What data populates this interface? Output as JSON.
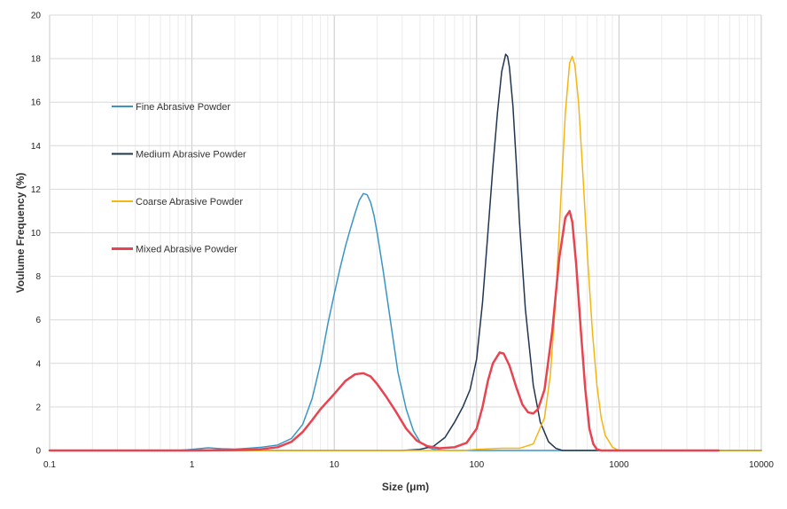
{
  "chart_data": {
    "type": "line",
    "title": "",
    "xlabel": "Size (μm)",
    "ylabel": "Voulume Frequency (%)",
    "xscale": "log",
    "xlim": [
      0.1,
      10000
    ],
    "ylim": [
      0,
      20
    ],
    "x_ticks": [
      0.1,
      1,
      10,
      100,
      1000,
      10000
    ],
    "x_tick_labels": [
      "0.1",
      "1",
      "10",
      "100",
      "1000",
      "10000"
    ],
    "y_ticks": [
      0,
      2,
      4,
      6,
      8,
      10,
      12,
      14,
      16,
      18,
      20
    ],
    "y_tick_labels": [
      "0",
      "2",
      "4",
      "6",
      "8",
      "10",
      "12",
      "14",
      "16",
      "18",
      "20"
    ],
    "grid": true,
    "legend_position": "upper-left",
    "series": [
      {
        "name": "Fine Abrasive Powder",
        "color": "#3a95c4",
        "line_width": 1.5,
        "points": [
          [
            0.1,
            0
          ],
          [
            0.8,
            0
          ],
          [
            1.0,
            0.05
          ],
          [
            1.3,
            0.12
          ],
          [
            1.6,
            0.08
          ],
          [
            2,
            0.06
          ],
          [
            2.5,
            0.1
          ],
          [
            3,
            0.14
          ],
          [
            4,
            0.25
          ],
          [
            5,
            0.55
          ],
          [
            6,
            1.2
          ],
          [
            7,
            2.4
          ],
          [
            8,
            4.0
          ],
          [
            9,
            5.8
          ],
          [
            10,
            7.2
          ],
          [
            11,
            8.4
          ],
          [
            12,
            9.4
          ],
          [
            13,
            10.2
          ],
          [
            14,
            10.9
          ],
          [
            15,
            11.5
          ],
          [
            16,
            11.8
          ],
          [
            17,
            11.75
          ],
          [
            18,
            11.4
          ],
          [
            19,
            10.8
          ],
          [
            20,
            10.0
          ],
          [
            22,
            8.3
          ],
          [
            25,
            5.8
          ],
          [
            28,
            3.6
          ],
          [
            32,
            1.9
          ],
          [
            36,
            0.9
          ],
          [
            40,
            0.4
          ],
          [
            45,
            0.15
          ],
          [
            50,
            0.05
          ],
          [
            60,
            0
          ],
          [
            10000,
            0
          ]
        ]
      },
      {
        "name": "Medium Abrasive Powder",
        "color": "#1f3550",
        "line_width": 1.5,
        "points": [
          [
            0.1,
            0
          ],
          [
            30,
            0
          ],
          [
            40,
            0.05
          ],
          [
            50,
            0.2
          ],
          [
            60,
            0.6
          ],
          [
            70,
            1.3
          ],
          [
            80,
            2.0
          ],
          [
            90,
            2.8
          ],
          [
            100,
            4.2
          ],
          [
            110,
            6.8
          ],
          [
            120,
            10.0
          ],
          [
            130,
            13.0
          ],
          [
            140,
            15.5
          ],
          [
            150,
            17.4
          ],
          [
            160,
            18.2
          ],
          [
            165,
            18.1
          ],
          [
            170,
            17.6
          ],
          [
            180,
            15.8
          ],
          [
            190,
            13.2
          ],
          [
            200,
            10.5
          ],
          [
            220,
            6.5
          ],
          [
            250,
            3.0
          ],
          [
            280,
            1.3
          ],
          [
            320,
            0.4
          ],
          [
            360,
            0.1
          ],
          [
            400,
            0
          ],
          [
            10000,
            0
          ]
        ]
      },
      {
        "name": "Coarse Abrasive Powder",
        "color": "#f3b612",
        "line_width": 1.5,
        "points": [
          [
            0.1,
            0
          ],
          [
            80,
            0
          ],
          [
            100,
            0.05
          ],
          [
            150,
            0.1
          ],
          [
            200,
            0.1
          ],
          [
            250,
            0.3
          ],
          [
            300,
            1.5
          ],
          [
            330,
            3.5
          ],
          [
            360,
            7.0
          ],
          [
            390,
            11.5
          ],
          [
            420,
            15.5
          ],
          [
            450,
            17.8
          ],
          [
            470,
            18.1
          ],
          [
            490,
            17.7
          ],
          [
            520,
            16.0
          ],
          [
            560,
            12.5
          ],
          [
            600,
            9.0
          ],
          [
            650,
            5.5
          ],
          [
            700,
            3.0
          ],
          [
            750,
            1.5
          ],
          [
            800,
            0.7
          ],
          [
            900,
            0.15
          ],
          [
            1000,
            0
          ],
          [
            10000,
            0
          ]
        ]
      },
      {
        "name": "Mixed Abrasive Powder",
        "color": "#e84450",
        "line_width": 2.5,
        "points": [
          [
            0.1,
            0
          ],
          [
            1,
            0
          ],
          [
            2,
            0.02
          ],
          [
            3,
            0.05
          ],
          [
            4,
            0.15
          ],
          [
            5,
            0.4
          ],
          [
            6,
            0.85
          ],
          [
            7,
            1.4
          ],
          [
            8,
            1.9
          ],
          [
            10,
            2.6
          ],
          [
            12,
            3.2
          ],
          [
            14,
            3.5
          ],
          [
            16,
            3.55
          ],
          [
            18,
            3.4
          ],
          [
            20,
            3.05
          ],
          [
            23,
            2.5
          ],
          [
            27,
            1.8
          ],
          [
            32,
            1.0
          ],
          [
            38,
            0.45
          ],
          [
            45,
            0.2
          ],
          [
            55,
            0.1
          ],
          [
            70,
            0.15
          ],
          [
            85,
            0.35
          ],
          [
            100,
            1.0
          ],
          [
            110,
            2.0
          ],
          [
            120,
            3.2
          ],
          [
            130,
            4.0
          ],
          [
            145,
            4.5
          ],
          [
            155,
            4.45
          ],
          [
            170,
            3.9
          ],
          [
            190,
            2.9
          ],
          [
            210,
            2.1
          ],
          [
            230,
            1.75
          ],
          [
            250,
            1.7
          ],
          [
            270,
            1.9
          ],
          [
            300,
            2.8
          ],
          [
            340,
            5.5
          ],
          [
            380,
            8.8
          ],
          [
            420,
            10.7
          ],
          [
            450,
            11.0
          ],
          [
            470,
            10.5
          ],
          [
            500,
            8.6
          ],
          [
            540,
            5.5
          ],
          [
            580,
            2.8
          ],
          [
            620,
            1.0
          ],
          [
            660,
            0.3
          ],
          [
            700,
            0.05
          ],
          [
            750,
            0
          ],
          [
            5000,
            0
          ]
        ]
      }
    ]
  }
}
